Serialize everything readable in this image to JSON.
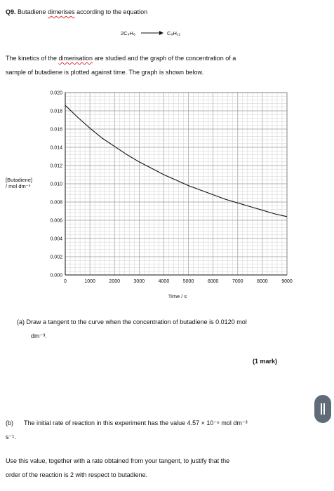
{
  "question": {
    "number": "Q9.",
    "intro_pre": "Butadiene ",
    "intro_wavy": "dimerises",
    "intro_post": " according to the equation",
    "equation_left": "2C₄H₆",
    "equation_right": "C₈H₁₂",
    "kinetics_pre": "The kinetics of the ",
    "kinetics_wavy": "dimerisation",
    "kinetics_post": " are studied and the graph of the concentration of a",
    "kinetics_line2": "sample of butadiene is plotted against time. The graph is shown below."
  },
  "chart_data": {
    "type": "line",
    "xlabel": "Time / s",
    "ylabel_line1": "[Butadiene]",
    "ylabel_line2": "/ mol dm⁻³",
    "xlim": [
      0,
      9000
    ],
    "ylim": [
      0,
      0.02
    ],
    "x_ticks": [
      "0",
      "1000",
      "2000",
      "3000",
      "4000",
      "5000",
      "6000",
      "7000",
      "8000",
      "9000"
    ],
    "y_ticks": [
      "0.000",
      "0.002",
      "0.004",
      "0.006",
      "0.008",
      "0.010",
      "0.012",
      "0.014",
      "0.016",
      "0.018",
      "0.020"
    ],
    "grid": true,
    "series": [
      {
        "x": [
          0,
          500,
          1000,
          1500,
          2000,
          2500,
          3000,
          3500,
          4000,
          4500,
          5000,
          5500,
          6000,
          6500,
          7000,
          7500,
          8000,
          8500,
          9000
        ],
        "y": [
          0.0186,
          0.0173,
          0.0161,
          0.015,
          0.0141,
          0.0132,
          0.0124,
          0.0117,
          0.011,
          0.0104,
          0.0098,
          0.0093,
          0.0088,
          0.0083,
          0.0079,
          0.0075,
          0.0071,
          0.0067,
          0.0064
        ]
      }
    ]
  },
  "part_a": {
    "line1": "(a) Draw a tangent to the curve when the concentration of butadiene is 0.0120 mol",
    "line2": "dm⁻³.",
    "marks": "(1 mark)"
  },
  "part_b": {
    "label": "(b)",
    "line1": "The initial rate of reaction in this experiment has the value 4.57 × 10⁻⁶ mol dm⁻³",
    "line2": "s⁻¹.",
    "instr1": "Use this value, together with a rate obtained from your tangent, to justify that the",
    "instr2": "order of the reaction is 2 with respect to butadiene."
  },
  "ui": {
    "pause_button_color": "#5f6b78"
  }
}
